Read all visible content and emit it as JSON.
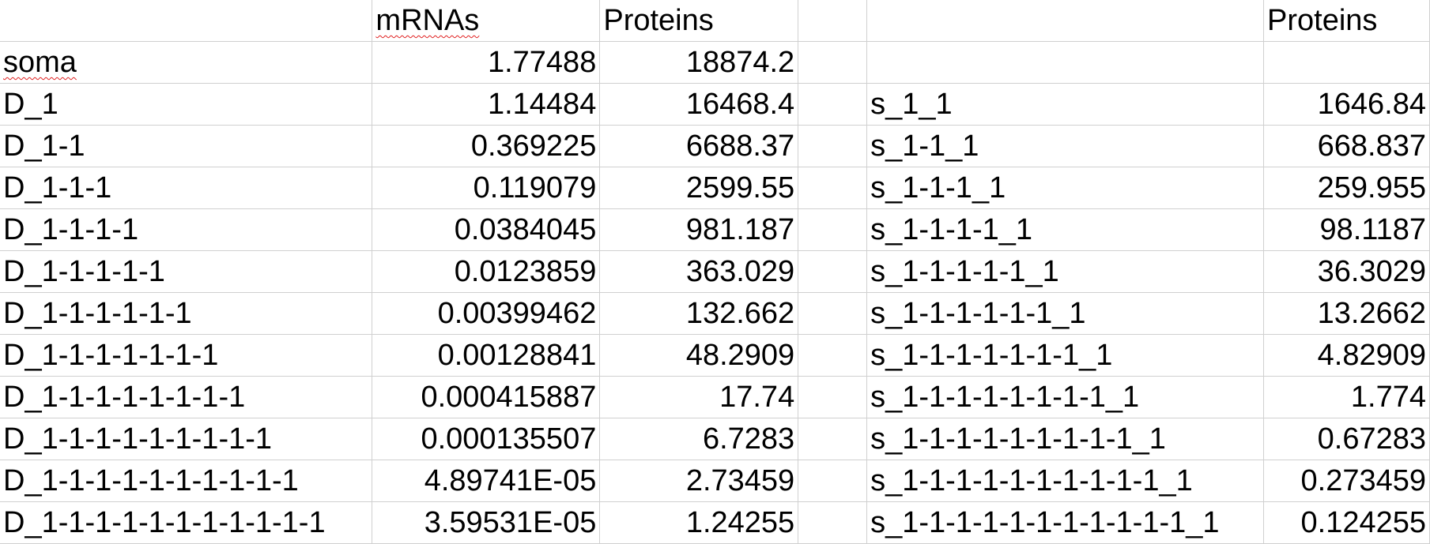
{
  "header": {
    "col_b": "mRNAs",
    "col_c": "Proteins",
    "col_f": "Proteins"
  },
  "rows": [
    {
      "name": "soma",
      "mrna": "1.77488",
      "protein": "18874.2",
      "site": "",
      "site_protein": ""
    },
    {
      "name": "D_1",
      "mrna": "1.14484",
      "protein": "16468.4",
      "site": "s_1_1",
      "site_protein": "1646.84"
    },
    {
      "name": "D_1-1",
      "mrna": "0.369225",
      "protein": "6688.37",
      "site": "s_1-1_1",
      "site_protein": "668.837"
    },
    {
      "name": "D_1-1-1",
      "mrna": "0.119079",
      "protein": "2599.55",
      "site": "s_1-1-1_1",
      "site_protein": "259.955"
    },
    {
      "name": "D_1-1-1-1",
      "mrna": "0.0384045",
      "protein": "981.187",
      "site": "s_1-1-1-1_1",
      "site_protein": "98.1187"
    },
    {
      "name": "D_1-1-1-1-1",
      "mrna": "0.0123859",
      "protein": "363.029",
      "site": "s_1-1-1-1-1_1",
      "site_protein": "36.3029"
    },
    {
      "name": "D_1-1-1-1-1-1",
      "mrna": "0.00399462",
      "protein": "132.662",
      "site": "s_1-1-1-1-1-1_1",
      "site_protein": "13.2662"
    },
    {
      "name": "D_1-1-1-1-1-1-1",
      "mrna": "0.00128841",
      "protein": "48.2909",
      "site": "s_1-1-1-1-1-1-1_1",
      "site_protein": "4.82909"
    },
    {
      "name": "D_1-1-1-1-1-1-1-1",
      "mrna": "0.000415887",
      "protein": "17.74",
      "site": "s_1-1-1-1-1-1-1-1_1",
      "site_protein": "1.774"
    },
    {
      "name": "D_1-1-1-1-1-1-1-1-1",
      "mrna": "0.000135507",
      "protein": "6.7283",
      "site": "s_1-1-1-1-1-1-1-1-1_1",
      "site_protein": "0.67283"
    },
    {
      "name": "D_1-1-1-1-1-1-1-1-1-1",
      "mrna": "4.89741E-05",
      "protein": "2.73459",
      "site": "s_1-1-1-1-1-1-1-1-1-1_1",
      "site_protein": "0.273459"
    },
    {
      "name": "D_1-1-1-1-1-1-1-1-1-1-1",
      "mrna": "3.59531E-05",
      "protein": "1.24255",
      "site": "s_1-1-1-1-1-1-1-1-1-1-1_1",
      "site_protein": "0.124255"
    }
  ]
}
